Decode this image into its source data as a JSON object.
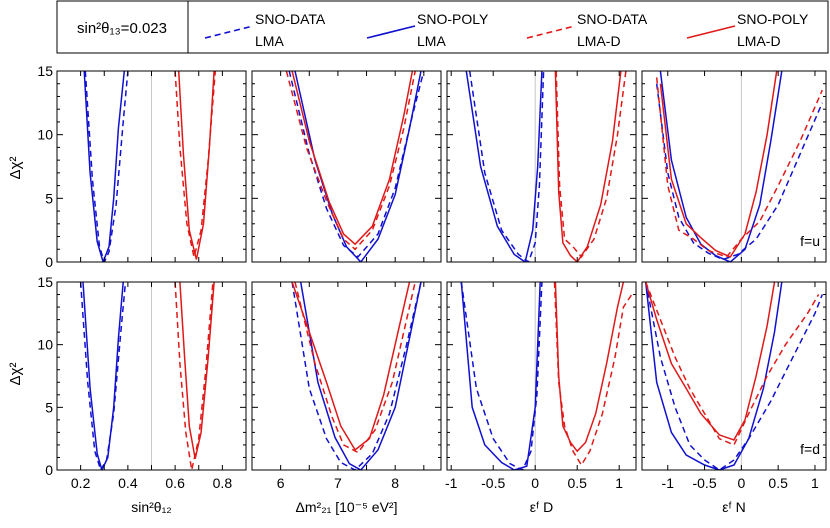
{
  "legend": {
    "theta_label": "sin²θ₁₃=0.023",
    "entries": [
      {
        "line1": "SNO-DATA",
        "line2": "LMA",
        "color": "#1010d0",
        "dash": true
      },
      {
        "line1": "SNO-POLY",
        "line2": "LMA",
        "color": "#1010d0",
        "dash": false
      },
      {
        "line1": "SNO-DATA",
        "line2": "LMA-D",
        "color": "#e01818",
        "dash": true
      },
      {
        "line1": "SNO-POLY",
        "line2": "LMA-D",
        "color": "#e01818",
        "dash": false
      }
    ]
  },
  "ylabel": "Δχ²",
  "rows": [
    {
      "label": "f=u"
    },
    {
      "label": "f=d"
    }
  ],
  "columns": [
    {
      "xlabel": "sin²θ₁₂",
      "xlim": [
        0.1,
        0.9
      ],
      "ticks": [
        0.2,
        0.3,
        0.4,
        0.5,
        0.6,
        0.7,
        0.8
      ],
      "ticklabels": [
        "0.2",
        "0.4",
        "0.6",
        "0.8"
      ],
      "ticklabel_values": [
        0.2,
        0.4,
        0.6,
        0.8
      ],
      "vline": 0.5
    },
    {
      "xlabel": "Δm²₂₁ [10⁻⁵ eV²]",
      "xlim": [
        5.5,
        8.8
      ],
      "ticks": [
        6,
        6.5,
        7,
        7.5,
        8,
        8.5
      ],
      "ticklabels": [
        "6",
        "7",
        "8"
      ],
      "ticklabel_values": [
        6,
        7,
        8
      ],
      "vline": null
    },
    {
      "xlabel": "εᶠ D",
      "xlim": [
        -1.05,
        1.2
      ],
      "ticks": [
        -1,
        -0.5,
        0,
        0.5,
        1
      ],
      "ticklabels": [
        "-1",
        "-0.5",
        "0",
        "0.5",
        "1"
      ],
      "ticklabel_values": [
        -1,
        -0.5,
        0,
        0.5,
        1
      ],
      "vline": 0
    },
    {
      "xlabel": "εᶠ N",
      "xlim": [
        -1.35,
        1.15
      ],
      "ticks": [
        -1,
        -0.5,
        0,
        0.5,
        1
      ],
      "ticklabels": [
        "-1",
        "-0.5",
        "0",
        "0.5",
        "1"
      ],
      "ticklabel_values": [
        -1,
        -0.5,
        0,
        0.5,
        1
      ],
      "vline": 0
    }
  ],
  "chart_data": {
    "type": "line",
    "ylim": [
      0,
      15
    ],
    "yticks": [
      0,
      5,
      10,
      15
    ],
    "yticklabels": [
      "0",
      "5",
      "10",
      "15"
    ],
    "curves": [
      [
        [
          {
            "name": "SNO-DATA LMA",
            "x": [
              0.22,
              0.25,
              0.28,
              0.3,
              0.32,
              0.35,
              0.38,
              0.4
            ],
            "y": [
              15,
              6.5,
              1.2,
              0.0,
              0.8,
              4.5,
              11,
              15
            ]
          },
          {
            "name": "SNO-POLY LMA",
            "x": [
              0.215,
              0.24,
              0.27,
              0.295,
              0.32,
              0.34,
              0.36,
              0.385
            ],
            "y": [
              15,
              7,
              1.6,
              0.0,
              1.2,
              5,
              10.5,
              15
            ]
          },
          {
            "name": "SNO-DATA LMA-D",
            "x": [
              0.6,
              0.62,
              0.65,
              0.68,
              0.71,
              0.74,
              0.77
            ],
            "y": [
              15,
              9,
              3,
              0.4,
              2.5,
              8,
              15
            ]
          },
          {
            "name": "SNO-POLY LMA-D",
            "x": [
              0.615,
              0.635,
              0.66,
              0.69,
              0.72,
              0.745,
              0.765
            ],
            "y": [
              15,
              8.5,
              2.5,
              0.2,
              3,
              9,
              15
            ]
          }
        ],
        [
          {
            "name": "SNO-DATA LMA",
            "x": [
              6.15,
              6.5,
              6.8,
              7.1,
              7.35,
              7.7,
              8.0,
              8.3,
              8.5
            ],
            "y": [
              15,
              8.5,
              4.2,
              1.3,
              0.4,
              2.2,
              5.8,
              11.5,
              15
            ]
          },
          {
            "name": "SNO-POLY LMA",
            "x": [
              6.25,
              6.6,
              6.9,
              7.15,
              7.4,
              7.7,
              8.0,
              8.25,
              8.45
            ],
            "y": [
              15,
              8,
              3.8,
              1.2,
              0.0,
              1.8,
              5.3,
              10.5,
              15
            ]
          },
          {
            "name": "SNO-DATA LMA-D",
            "x": [
              6.1,
              6.45,
              6.8,
              7.1,
              7.3,
              7.6,
              7.9,
              8.15,
              8.35
            ],
            "y": [
              15,
              9,
              4.8,
              1.8,
              1.0,
              2.5,
              6,
              10.5,
              15
            ]
          },
          {
            "name": "SNO-POLY LMA-D",
            "x": [
              6.2,
              6.5,
              6.85,
              7.1,
              7.3,
              7.6,
              7.9,
              8.15,
              8.3
            ],
            "y": [
              15,
              9.5,
              4.7,
              2.2,
              1.4,
              2.8,
              6.5,
              11.5,
              15
            ]
          }
        ],
        [
          {
            "name": "SNO-DATA LMA",
            "x": [
              -0.78,
              -0.6,
              -0.4,
              -0.2,
              -0.08,
              0.0,
              0.05,
              0.1
            ],
            "y": [
              15,
              7,
              2.5,
              0.6,
              0.0,
              1.5,
              6,
              15
            ]
          },
          {
            "name": "SNO-POLY LMA",
            "x": [
              -0.82,
              -0.65,
              -0.45,
              -0.25,
              -0.12,
              -0.03,
              0.03,
              0.08
            ],
            "y": [
              15,
              7.5,
              2.8,
              0.6,
              0.0,
              2.5,
              7.5,
              15
            ]
          },
          {
            "name": "SNO-DATA LMA-D",
            "x": [
              0.25,
              0.29,
              0.35,
              0.45,
              0.55,
              0.7,
              0.85,
              0.98,
              1.08
            ],
            "y": [
              15,
              6,
              1.8,
              1.2,
              0.4,
              1.8,
              5,
              10,
              15
            ]
          },
          {
            "name": "SNO-POLY LMA-D",
            "x": [
              0.24,
              0.28,
              0.33,
              0.42,
              0.5,
              0.62,
              0.78,
              0.92,
              1.02
            ],
            "y": [
              15,
              5.5,
              1.5,
              0.5,
              0.0,
              1.2,
              4.5,
              9.5,
              15
            ]
          }
        ],
        [
          {
            "name": "SNO-DATA LMA",
            "x": [
              -1.15,
              -1.0,
              -0.85,
              -0.65,
              -0.45,
              -0.25,
              -0.05,
              0.2,
              0.5,
              0.8,
              1.1
            ],
            "y": [
              14,
              7,
              3.5,
              1.5,
              0.7,
              0.2,
              0.6,
              1.8,
              4.5,
              8.5,
              12.5
            ]
          },
          {
            "name": "SNO-POLY LMA",
            "x": [
              -1.1,
              -0.95,
              -0.75,
              -0.55,
              -0.35,
              -0.15,
              0.05,
              0.25,
              0.4,
              0.55
            ],
            "y": [
              15,
              8,
              3.5,
              1.4,
              0.5,
              0.0,
              1.0,
              4.5,
              9.5,
              15
            ]
          },
          {
            "name": "SNO-DATA LMA-D",
            "x": [
              -1.15,
              -1.0,
              -0.85,
              -0.65,
              -0.45,
              -0.2,
              0.0,
              0.25,
              0.5,
              0.8,
              1.1
            ],
            "y": [
              14.5,
              6,
              2.5,
              1.8,
              0.9,
              0.4,
              1.8,
              3.2,
              6,
              9.5,
              13.5
            ]
          },
          {
            "name": "SNO-POLY LMA-D",
            "x": [
              -1.1,
              -0.95,
              -0.75,
              -0.55,
              -0.35,
              -0.15,
              0.05,
              0.2,
              0.35,
              0.48
            ],
            "y": [
              14,
              6.5,
              3,
              1.9,
              0.9,
              0.4,
              2.2,
              5.5,
              10,
              15
            ]
          }
        ]
      ],
      [
        [
          {
            "name": "SNO-DATA LMA",
            "x": [
              0.2,
              0.23,
              0.26,
              0.285,
              0.31,
              0.34,
              0.37,
              0.39
            ],
            "y": [
              15,
              7,
              1.5,
              0.0,
              0.8,
              4.5,
              11,
              15
            ]
          },
          {
            "name": "SNO-POLY LMA",
            "x": [
              0.21,
              0.24,
              0.27,
              0.29,
              0.315,
              0.34,
              0.36,
              0.38
            ],
            "y": [
              15,
              6.5,
              1.3,
              0.0,
              1.0,
              5,
              10.5,
              15
            ]
          },
          {
            "name": "SNO-DATA LMA-D",
            "x": [
              0.6,
              0.62,
              0.645,
              0.67,
              0.7,
              0.73,
              0.76
            ],
            "y": [
              15,
              8.5,
              3,
              0.0,
              2.5,
              8,
              15
            ]
          },
          {
            "name": "SNO-POLY LMA-D",
            "x": [
              0.62,
              0.64,
              0.66,
              0.685,
              0.71,
              0.74,
              0.765
            ],
            "y": [
              15,
              9,
              3.5,
              0.9,
              3,
              9,
              15
            ]
          }
        ],
        [
          {
            "name": "SNO-DATA LMA",
            "x": [
              6.2,
              6.5,
              6.8,
              7.05,
              7.3,
              7.6,
              7.9,
              8.2,
              8.45
            ],
            "y": [
              15,
              6.5,
              2.5,
              0.6,
              0.0,
              1.3,
              4.5,
              10,
              15
            ]
          },
          {
            "name": "SNO-POLY LMA",
            "x": [
              6.35,
              6.65,
              6.95,
              7.2,
              7.4,
              7.7,
              8.0,
              8.25,
              8.45
            ],
            "y": [
              15,
              7,
              2.6,
              0.5,
              0.0,
              1.6,
              5,
              10.5,
              15
            ]
          },
          {
            "name": "SNO-DATA LMA-D",
            "x": [
              6.25,
              6.6,
              6.9,
              7.1,
              7.35,
              7.65,
              7.95,
              8.2,
              8.35
            ],
            "y": [
              15,
              8.5,
              4.2,
              2.0,
              1.4,
              3.2,
              7,
              12,
              15
            ]
          },
          {
            "name": "SNO-POLY LMA-D",
            "x": [
              6.2,
              6.5,
              6.8,
              7.05,
              7.3,
              7.55,
              7.8,
              8.05,
              8.25
            ],
            "y": [
              15,
              11,
              7,
              3.5,
              1.6,
              2.5,
              6,
              11,
              15
            ]
          }
        ],
        [
          {
            "name": "SNO-DATA LMA",
            "x": [
              -0.88,
              -0.7,
              -0.5,
              -0.3,
              -0.15,
              -0.05,
              0.02,
              0.08
            ],
            "y": [
              15,
              6.5,
              2.5,
              0.5,
              0.0,
              1.5,
              6,
              15
            ]
          },
          {
            "name": "SNO-POLY LMA",
            "x": [
              -0.88,
              -0.75,
              -0.6,
              -0.4,
              -0.25,
              -0.1,
              0.0,
              0.06
            ],
            "y": [
              15,
              5,
              2,
              0.6,
              0.0,
              0.3,
              5,
              15
            ]
          },
          {
            "name": "SNO-DATA LMA-D",
            "x": [
              0.23,
              0.28,
              0.35,
              0.45,
              0.55,
              0.65,
              0.8,
              0.95,
              1.05,
              1.15
            ],
            "y": [
              15,
              7,
              3.5,
              1.5,
              0.4,
              1.5,
              4.5,
              9,
              13,
              14
            ]
          },
          {
            "name": "SNO-POLY LMA-D",
            "x": [
              0.24,
              0.28,
              0.33,
              0.42,
              0.5,
              0.6,
              0.72,
              0.85,
              0.98,
              1.05
            ],
            "y": [
              15,
              7.5,
              3.5,
              2.2,
              1.5,
              2.2,
              4.5,
              8.5,
              13,
              15
            ]
          }
        ],
        [
          {
            "name": "SNO-DATA LMA",
            "x": [
              -1.3,
              -1.1,
              -0.9,
              -0.7,
              -0.5,
              -0.3,
              -0.1,
              0.1,
              0.4,
              0.7,
              1.0,
              1.1
            ],
            "y": [
              15,
              9,
              5,
              2,
              0.8,
              0.0,
              0.8,
              2.5,
              5.5,
              9,
              12.5,
              14
            ]
          },
          {
            "name": "SNO-POLY LMA",
            "x": [
              -1.3,
              -1.15,
              -0.95,
              -0.75,
              -0.5,
              -0.3,
              -0.1,
              0.1,
              0.3,
              0.45,
              0.55
            ],
            "y": [
              15,
              7,
              3,
              1.2,
              0.4,
              0.0,
              0.4,
              2.5,
              6.5,
              11,
              15
            ]
          },
          {
            "name": "SNO-DATA LMA-D",
            "x": [
              -1.3,
              -1.1,
              -0.9,
              -0.7,
              -0.5,
              -0.3,
              -0.1,
              0.1,
              0.35,
              0.6,
              0.9,
              1.05
            ],
            "y": [
              15,
              12,
              9,
              6.5,
              4.5,
              2.5,
              2.0,
              4.5,
              7.5,
              10,
              12.5,
              14
            ]
          },
          {
            "name": "SNO-POLY LMA-D",
            "x": [
              -1.3,
              -1.15,
              -0.95,
              -0.75,
              -0.55,
              -0.3,
              -0.1,
              0.05,
              0.2,
              0.35,
              0.45
            ],
            "y": [
              15,
              12,
              8.5,
              6.5,
              4.5,
              2.8,
              2.4,
              4,
              7.5,
              11.5,
              15
            ]
          }
        ]
      ]
    ]
  }
}
